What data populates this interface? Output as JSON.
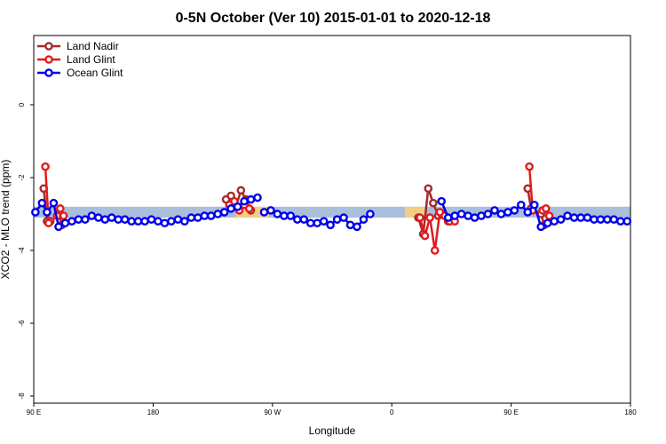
{
  "chart_data": {
    "type": "line",
    "title": "0-5N October (Ver 10)   2015-01-01 to 2020-12-18",
    "xlabel": "Longitude",
    "ylabel": "XCO2 - MLO trend (ppm)",
    "xlim": [
      -180,
      180
    ],
    "ylim": [
      -8,
      2
    ],
    "x_ticks": [
      {
        "value": -180,
        "label": "90 E"
      },
      {
        "value": -108,
        "label": "180"
      },
      {
        "value": -36,
        "label": "90 W"
      },
      {
        "value": 36,
        "label": "0"
      },
      {
        "value": 108,
        "label": "90 E"
      },
      {
        "value": 180,
        "label": "180"
      }
    ],
    "y_ticks": [
      {
        "value": 0,
        "label": "0"
      },
      {
        "value": -2,
        "label": "-2"
      },
      {
        "value": -4,
        "label": "-4"
      },
      {
        "value": -6,
        "label": "-6"
      },
      {
        "value": -8,
        "label": "-8"
      }
    ],
    "grid": false,
    "legend_position": "top-left",
    "bands": [
      {
        "x": [
          -180,
          180
        ],
        "y": [
          -3.1,
          -2.8
        ],
        "color": "#a9bfdc"
      },
      {
        "x": [
          -58,
          -38
        ],
        "y": [
          -3.1,
          -2.8
        ],
        "color": "#f3cf83"
      },
      {
        "x": [
          44,
          56
        ],
        "y": [
          -3.1,
          -2.8
        ],
        "color": "#f3cf83"
      }
    ],
    "series": [
      {
        "name": "Land Nadir",
        "color": "#a52a2a",
        "segments": [
          [
            [
              -174,
              -2.3
            ],
            [
              -172,
              -3.2
            ],
            [
              -170,
              -3.2
            ]
          ],
          [
            [
              -165,
              -3.0
            ],
            [
              -163,
              -3.3
            ]
          ],
          [
            [
              -64,
              -2.6
            ],
            [
              -61,
              -2.5
            ],
            [
              -58,
              -2.8
            ],
            [
              -55,
              -2.35
            ],
            [
              -52,
              -2.6
            ],
            [
              -49,
              -2.9
            ]
          ],
          [
            [
              52,
              -3.1
            ],
            [
              55,
              -3.55
            ],
            [
              58,
              -2.3
            ],
            [
              61,
              -2.7
            ],
            [
              64,
              -3.05
            ],
            [
              67,
              -3.0
            ],
            [
              70,
              -3.2
            ],
            [
              73,
              -3.1
            ]
          ],
          [
            [
              118,
              -2.3
            ],
            [
              120,
              -2.85
            ]
          ],
          [
            [
              126,
              -3.0
            ],
            [
              128,
              -3.3
            ]
          ]
        ]
      },
      {
        "name": "Land Glint",
        "color": "#e41a1c",
        "segments": [
          [
            [
              -173,
              -1.7
            ],
            [
              -171,
              -3.25
            ]
          ],
          [
            [
              -166,
              -3.05
            ],
            [
              -164,
              -2.85
            ],
            [
              -162,
              -3.05
            ]
          ],
          [
            [
              -62,
              -2.75
            ],
            [
              -59,
              -2.65
            ],
            [
              -56,
              -2.9
            ],
            [
              -53,
              -2.75
            ],
            [
              -50,
              -2.85
            ]
          ],
          [
            [
              53,
              -3.1
            ],
            [
              56,
              -3.6
            ],
            [
              59,
              -3.1
            ],
            [
              62,
              -4.0
            ],
            [
              65,
              -2.95
            ],
            [
              68,
              -3.05
            ],
            [
              71,
              -3.2
            ],
            [
              74,
              -3.2
            ]
          ],
          [
            [
              119,
              -1.7
            ],
            [
              121,
              -2.9
            ]
          ],
          [
            [
              127,
              -2.9
            ],
            [
              129,
              -2.85
            ],
            [
              131,
              -3.05
            ]
          ]
        ]
      },
      {
        "name": "Ocean Glint",
        "color": "#0000ee",
        "segments": [
          [
            [
              -179,
              -2.95
            ],
            [
              -175,
              -2.7
            ],
            [
              -172,
              -2.95
            ],
            [
              -168,
              -2.7
            ],
            [
              -165,
              -3.35
            ],
            [
              -161,
              -3.25
            ],
            [
              -157,
              -3.2
            ],
            [
              -153,
              -3.15
            ],
            [
              -149,
              -3.15
            ],
            [
              -145,
              -3.05
            ],
            [
              -141,
              -3.1
            ],
            [
              -137,
              -3.15
            ],
            [
              -133,
              -3.1
            ],
            [
              -129,
              -3.15
            ],
            [
              -125,
              -3.15
            ],
            [
              -121,
              -3.2
            ],
            [
              -117,
              -3.2
            ],
            [
              -113,
              -3.2
            ],
            [
              -109,
              -3.15
            ],
            [
              -105,
              -3.2
            ],
            [
              -101,
              -3.25
            ],
            [
              -97,
              -3.2
            ],
            [
              -93,
              -3.15
            ],
            [
              -89,
              -3.2
            ],
            [
              -85,
              -3.1
            ],
            [
              -81,
              -3.1
            ],
            [
              -77,
              -3.05
            ],
            [
              -73,
              -3.05
            ],
            [
              -69,
              -3.0
            ],
            [
              -65,
              -2.95
            ],
            [
              -61,
              -2.85
            ],
            [
              -57,
              -2.8
            ],
            [
              -53,
              -2.65
            ],
            [
              -49,
              -2.6
            ],
            [
              -45,
              -2.55
            ]
          ],
          [
            [
              -41,
              -2.95
            ],
            [
              -37,
              -2.9
            ],
            [
              -33,
              -3.0
            ],
            [
              -29,
              -3.05
            ],
            [
              -25,
              -3.05
            ],
            [
              -21,
              -3.15
            ],
            [
              -17,
              -3.15
            ],
            [
              -13,
              -3.25
            ],
            [
              -9,
              -3.25
            ],
            [
              -5,
              -3.2
            ],
            [
              -1,
              -3.3
            ],
            [
              3,
              -3.15
            ],
            [
              7,
              -3.1
            ],
            [
              11,
              -3.3
            ],
            [
              15,
              -3.35
            ],
            [
              19,
              -3.15
            ],
            [
              23,
              -3.0
            ]
          ],
          [
            [
              66,
              -2.65
            ],
            [
              70,
              -3.1
            ],
            [
              74,
              -3.05
            ],
            [
              78,
              -3.0
            ],
            [
              82,
              -3.05
            ],
            [
              86,
              -3.1
            ],
            [
              90,
              -3.05
            ],
            [
              94,
              -3.0
            ],
            [
              98,
              -2.9
            ],
            [
              102,
              -3.0
            ],
            [
              106,
              -2.95
            ],
            [
              110,
              -2.9
            ],
            [
              114,
              -2.75
            ],
            [
              118,
              -2.95
            ],
            [
              122,
              -2.75
            ],
            [
              126,
              -3.35
            ],
            [
              130,
              -3.25
            ],
            [
              134,
              -3.2
            ],
            [
              138,
              -3.15
            ],
            [
              142,
              -3.05
            ],
            [
              146,
              -3.1
            ],
            [
              150,
              -3.1
            ],
            [
              154,
              -3.1
            ],
            [
              158,
              -3.15
            ],
            [
              162,
              -3.15
            ],
            [
              166,
              -3.15
            ],
            [
              170,
              -3.15
            ],
            [
              174,
              -3.2
            ],
            [
              178,
              -3.2
            ]
          ]
        ]
      }
    ]
  }
}
